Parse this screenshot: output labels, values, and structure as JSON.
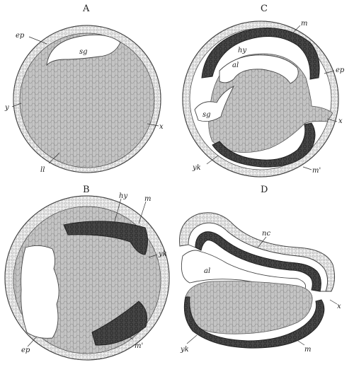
{
  "panels": {
    "A": {
      "letter": "A",
      "labels": {
        "ep": "ep",
        "sg": "sg",
        "y": "y",
        "x": "x",
        "ll": "ll"
      }
    },
    "B": {
      "letter": "B",
      "labels": {
        "hy": "hy",
        "m": "m",
        "yk": "yk",
        "ep": "ep",
        "m_prime": "m'"
      }
    },
    "C": {
      "letter": "C",
      "labels": {
        "m": "m",
        "hy": "hy",
        "al": "al",
        "ep": "ep",
        "sg": "sg",
        "x": "x",
        "yk": "yk",
        "m_prime": "m'"
      }
    },
    "D": {
      "letter": "D",
      "labels": {
        "nc": "nc",
        "al": "al",
        "x": "x",
        "yk": "yk",
        "m": "m"
      }
    }
  },
  "colors": {
    "background": "#ffffff",
    "yolk_cells": "#b9b9b9",
    "mesoderm": "#3e3e3e",
    "cavity": "#ffffff",
    "outline": "#444444"
  }
}
